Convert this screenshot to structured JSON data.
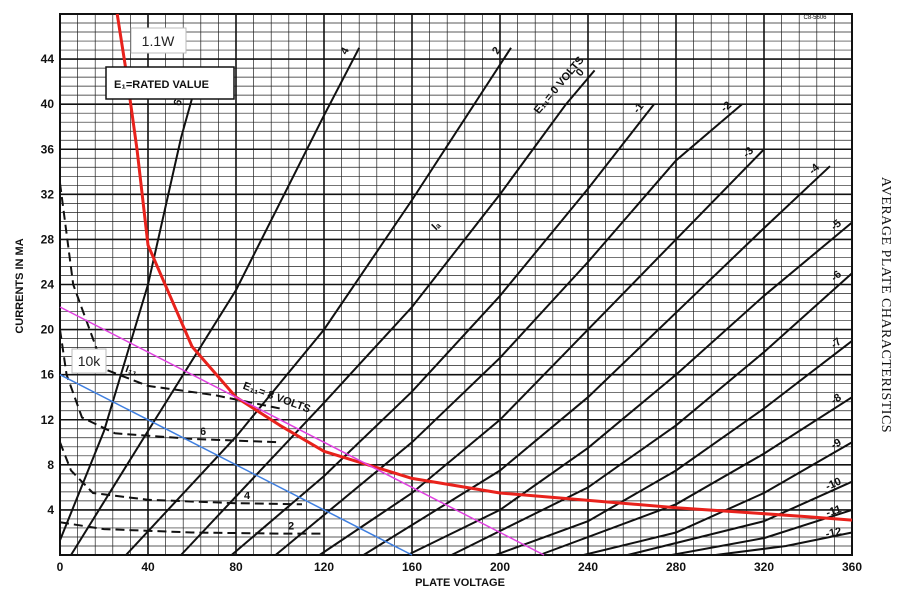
{
  "chart_data": {
    "type": "line",
    "title": "AVERAGE PLATE CHARACTERISTICS",
    "ref_code": "C8-5606",
    "xlabel": "PLATE VOLTAGE",
    "ylabel": "CURRENTS IN MA",
    "xlim": [
      0,
      360
    ],
    "ylim": [
      0,
      48
    ],
    "grid": true,
    "x_ticks": [
      0,
      40,
      80,
      120,
      160,
      200,
      240,
      280,
      320,
      360
    ],
    "y_ticks": [
      4,
      8,
      12,
      16,
      20,
      24,
      28,
      32,
      36,
      40,
      44
    ],
    "legend_box": "E₁=RATED VALUE",
    "plate_curves": [
      {
        "label": "6",
        "points": [
          [
            0,
            1.3
          ],
          [
            20,
            11
          ],
          [
            40,
            24
          ],
          [
            55,
            37
          ],
          [
            60,
            40.5
          ]
        ]
      },
      {
        "label": "4",
        "points": [
          [
            5,
            0
          ],
          [
            40,
            11
          ],
          [
            80,
            23.5
          ],
          [
            120,
            39
          ],
          [
            136,
            45
          ]
        ]
      },
      {
        "label": "2",
        "points": [
          [
            30,
            0
          ],
          [
            80,
            10.5
          ],
          [
            120,
            20
          ],
          [
            160,
            31.5
          ],
          [
            190,
            40.5
          ],
          [
            205,
            45
          ]
        ]
      },
      {
        "label": "0",
        "points": [
          [
            55,
            0
          ],
          [
            120,
            13.5
          ],
          [
            160,
            22
          ],
          [
            200,
            32
          ],
          [
            230,
            40
          ],
          [
            243,
            43
          ]
        ]
      },
      {
        "label": "-1",
        "points": [
          [
            78,
            0
          ],
          [
            120,
            7
          ],
          [
            160,
            14.5
          ],
          [
            200,
            23
          ],
          [
            240,
            32.5
          ],
          [
            270,
            40
          ]
        ]
      },
      {
        "label": "-2",
        "points": [
          [
            98,
            0
          ],
          [
            160,
            10
          ],
          [
            200,
            17.5
          ],
          [
            240,
            26
          ],
          [
            280,
            35
          ],
          [
            310,
            40
          ]
        ]
      },
      {
        "label": "-3",
        "points": [
          [
            118,
            0
          ],
          [
            160,
            5.5
          ],
          [
            200,
            12
          ],
          [
            240,
            20
          ],
          [
            280,
            28
          ],
          [
            320,
            36
          ]
        ]
      },
      {
        "label": "-4",
        "points": [
          [
            138,
            0
          ],
          [
            200,
            7.5
          ],
          [
            240,
            14
          ],
          [
            280,
            21.5
          ],
          [
            320,
            29
          ],
          [
            350,
            34.5
          ]
        ]
      },
      {
        "label": "-5",
        "points": [
          [
            158,
            0
          ],
          [
            200,
            4
          ],
          [
            240,
            9.5
          ],
          [
            280,
            16
          ],
          [
            320,
            23
          ],
          [
            360,
            29.5
          ]
        ]
      },
      {
        "label": "-6",
        "points": [
          [
            178,
            0
          ],
          [
            240,
            6
          ],
          [
            280,
            11.5
          ],
          [
            320,
            18
          ],
          [
            360,
            25
          ]
        ]
      },
      {
        "label": "-7",
        "points": [
          [
            198,
            0
          ],
          [
            240,
            3
          ],
          [
            280,
            7.5
          ],
          [
            320,
            13
          ],
          [
            360,
            19
          ]
        ]
      },
      {
        "label": "-8",
        "points": [
          [
            218,
            0
          ],
          [
            280,
            4.5
          ],
          [
            320,
            9
          ],
          [
            360,
            14
          ]
        ]
      },
      {
        "label": "-9",
        "points": [
          [
            238,
            0
          ],
          [
            280,
            2
          ],
          [
            320,
            5.5
          ],
          [
            360,
            10
          ]
        ]
      },
      {
        "label": "-10",
        "points": [
          [
            258,
            0
          ],
          [
            320,
            3
          ],
          [
            360,
            6.5
          ]
        ]
      },
      {
        "label": "-11",
        "points": [
          [
            278,
            0
          ],
          [
            320,
            1.5
          ],
          [
            360,
            4
          ]
        ]
      },
      {
        "label": "-12",
        "points": [
          [
            298,
            0
          ],
          [
            330,
            0.8
          ],
          [
            360,
            2
          ]
        ]
      }
    ],
    "screen_grid_curves": [
      {
        "label": "2",
        "points": [
          [
            0,
            2.9
          ],
          [
            20,
            2.3
          ],
          [
            60,
            2.0
          ],
          [
            100,
            1.9
          ],
          [
            120,
            1.9
          ]
        ]
      },
      {
        "label": "4",
        "points": [
          [
            0,
            10
          ],
          [
            5,
            7.5
          ],
          [
            15,
            5.5
          ],
          [
            40,
            4.9
          ],
          [
            80,
            4.6
          ],
          [
            110,
            4.5
          ]
        ]
      },
      {
        "label": "6",
        "points": [
          [
            0,
            20
          ],
          [
            3,
            16
          ],
          [
            10,
            12.2
          ],
          [
            25,
            10.8
          ],
          [
            60,
            10.3
          ],
          [
            100,
            10
          ]
        ]
      },
      {
        "label": "8",
        "points": [
          [
            0,
            33
          ],
          [
            2,
            30
          ],
          [
            6,
            24
          ],
          [
            20,
            16.5
          ],
          [
            40,
            15
          ],
          [
            70,
            14.2
          ],
          [
            100,
            13
          ]
        ]
      }
    ],
    "curve_labels": {
      "grid_family": "E₁₁= 0 VOLTS",
      "screen_family": "E₁₁= 8 VOLTS",
      "screen_current": "I₁₁",
      "plate_current": "Iₐ"
    },
    "overlay_lines": [
      {
        "name": "1.1W",
        "color": "#e8221c",
        "points": [
          [
            26,
            48
          ],
          [
            30,
            43
          ],
          [
            35,
            36
          ],
          [
            40,
            27.5
          ],
          [
            50,
            23
          ],
          [
            60,
            18.5
          ],
          [
            80,
            14
          ],
          [
            100,
            11.5
          ],
          [
            120,
            9.2
          ],
          [
            160,
            6.8
          ],
          [
            200,
            5.5
          ],
          [
            280,
            4.2
          ],
          [
            340,
            3.4
          ],
          [
            360,
            3.1
          ]
        ]
      },
      {
        "name": "10k",
        "color": "#3f7fe0",
        "points": [
          [
            0,
            16
          ],
          [
            160,
            0
          ]
        ]
      },
      {
        "name": "",
        "color": "#e040e0",
        "points": [
          [
            0,
            22
          ],
          [
            220,
            0
          ]
        ]
      }
    ]
  }
}
